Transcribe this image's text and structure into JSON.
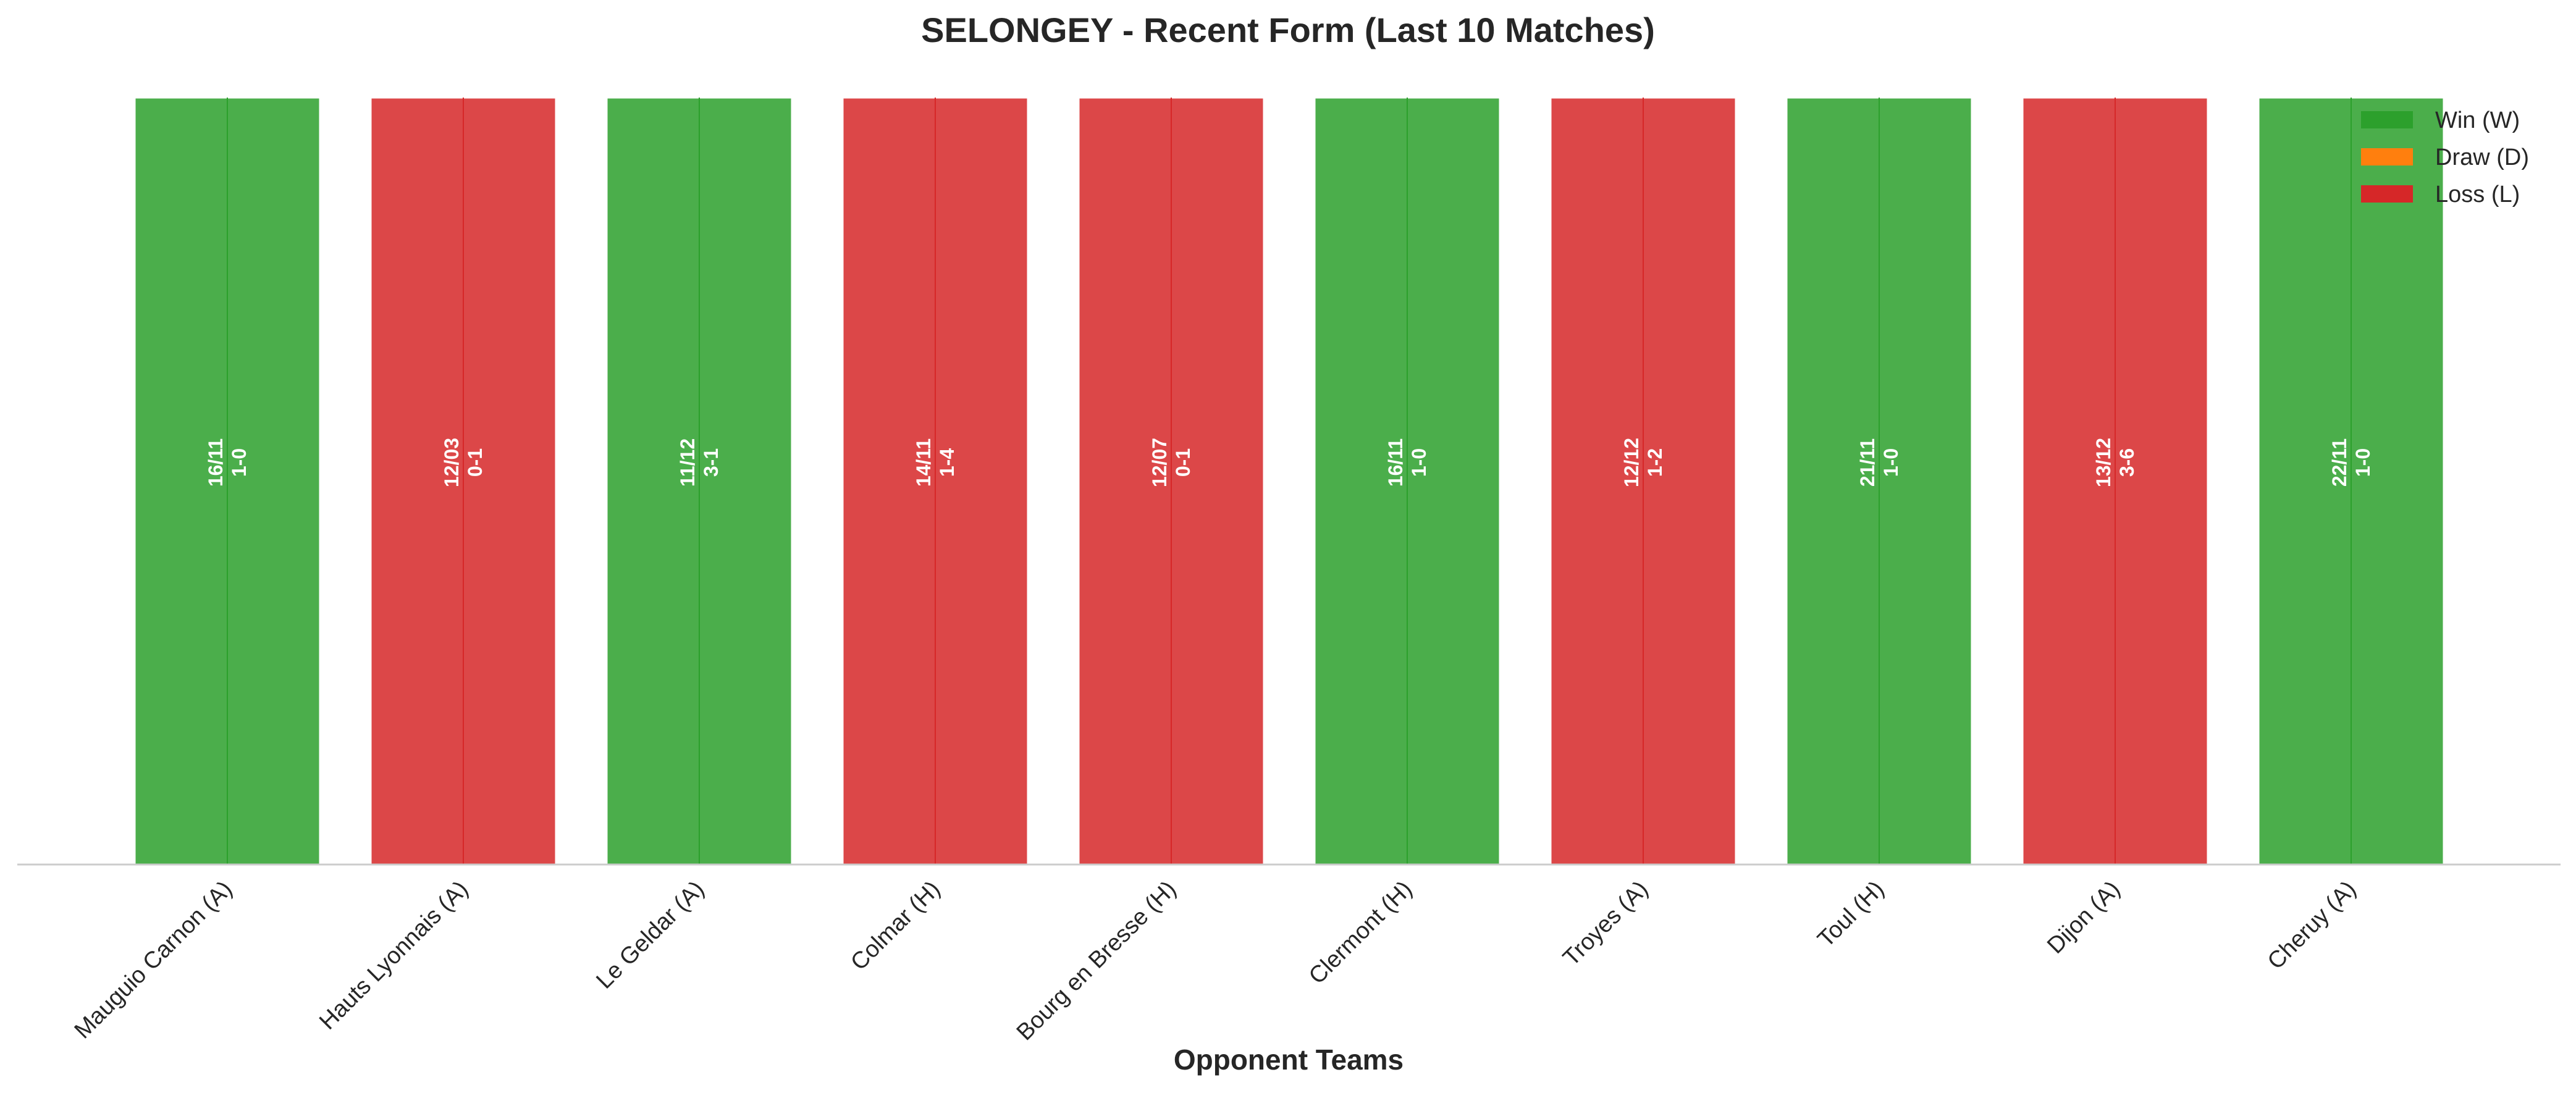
{
  "chart_data": {
    "type": "bar",
    "title": "SELONGEY - Recent Form (Last 10 Matches)",
    "xlabel": "Opponent Teams",
    "ylabel": "",
    "grid": false,
    "legend_position": "top-right",
    "categories": [
      "Mauguio Carnon (A)",
      "Hauts Lyonnais (A)",
      "Le Geldar (A)",
      "Colmar (H)",
      "Bourg en Bresse (H)",
      "Clermont (H)",
      "Troyes (A)",
      "Toul (H)",
      "Dijon (A)",
      "Cheruy (A)"
    ],
    "values": [
      1,
      1,
      1,
      1,
      1,
      1,
      1,
      1,
      1,
      1
    ],
    "results": [
      "W",
      "L",
      "W",
      "L",
      "L",
      "W",
      "L",
      "W",
      "L",
      "W"
    ],
    "dates": [
      "16/11",
      "12/03",
      "11/12",
      "14/11",
      "12/07",
      "16/11",
      "12/12",
      "21/11",
      "13/12",
      "22/11"
    ],
    "scores": [
      "1-0",
      "0-1",
      "3-1",
      "1-4",
      "0-1",
      "1-0",
      "1-2",
      "1-0",
      "3-6",
      "1-0"
    ],
    "legend": [
      {
        "key": "W",
        "label": "Win (W)",
        "color": "#2ca02c"
      },
      {
        "key": "D",
        "label": "Draw (D)",
        "color": "#ff7f0e"
      },
      {
        "key": "L",
        "label": "Loss (L)",
        "color": "#d62728"
      }
    ]
  }
}
